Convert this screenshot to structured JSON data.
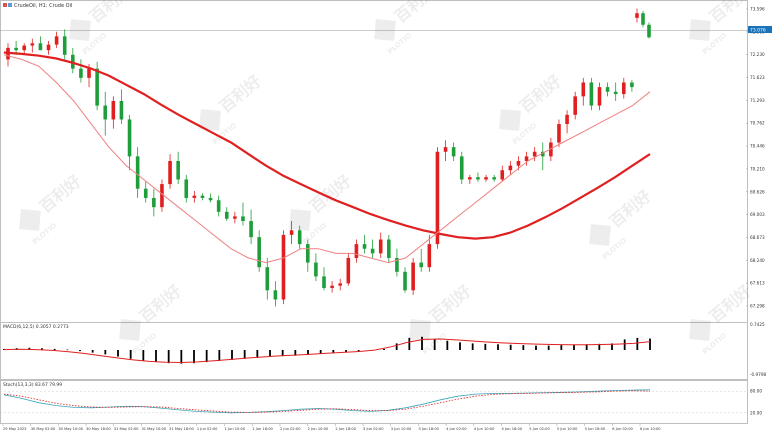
{
  "window": {
    "title": "CrudeOil, H1: Crude Oil",
    "price_badge": "73.076"
  },
  "watermark": {
    "text": "PLOTIO",
    "cn": "百利好"
  },
  "chart_data": {
    "type": "candlestick",
    "symbol": "CrudeOil",
    "timeframe": "H1",
    "price_axis": {
      "ticks": [
        "73.596",
        "72.960",
        "72.230",
        "71.623",
        "71.293",
        "70.762",
        "70.446",
        "70.210",
        "69.626",
        "69.003",
        "68.673",
        "68.240",
        "67.613",
        "67.298"
      ],
      "ylim": [
        67.0,
        73.8
      ]
    },
    "time_axis": {
      "ticks": [
        "29 May 2023",
        "30 May 02:00",
        "30 May 10:00",
        "30 May 18:00",
        "31 May 02:00",
        "31 May 10:00",
        "31 May 18:00",
        "1 Jun 02:00",
        "1 Jun 10:00",
        "1 Jun 18:00",
        "2 Jun 02:00",
        "2 Jun 10:00",
        "2 Jun 18:00",
        "3 Jun 02:00",
        "3 Jun 10:00",
        "3 Jun 18:00",
        "4 Jun 02:00",
        "4 Jun 10:00",
        "4 Jun 18:00",
        "5 Jun 02:00",
        "5 Jun 10:00",
        "5 Jun 18:00",
        "6 Jun 02:00",
        "6 Jun 10:00"
      ]
    },
    "candles": [
      {
        "o": 72.6,
        "h": 72.95,
        "l": 72.45,
        "c": 72.85
      },
      {
        "o": 72.85,
        "h": 73.0,
        "l": 72.7,
        "c": 72.8
      },
      {
        "o": 72.8,
        "h": 72.95,
        "l": 72.7,
        "c": 72.9
      },
      {
        "o": 72.9,
        "h": 73.05,
        "l": 72.75,
        "c": 72.95
      },
      {
        "o": 72.95,
        "h": 73.1,
        "l": 72.8,
        "c": 72.8
      },
      {
        "o": 72.8,
        "h": 73.0,
        "l": 72.7,
        "c": 72.92
      },
      {
        "o": 72.92,
        "h": 73.2,
        "l": 72.85,
        "c": 73.1
      },
      {
        "o": 73.1,
        "h": 73.25,
        "l": 72.6,
        "c": 72.7
      },
      {
        "o": 72.7,
        "h": 72.85,
        "l": 72.3,
        "c": 72.4
      },
      {
        "o": 72.4,
        "h": 72.6,
        "l": 72.1,
        "c": 72.2
      },
      {
        "o": 72.2,
        "h": 72.5,
        "l": 72.0,
        "c": 72.4
      },
      {
        "o": 72.4,
        "h": 72.55,
        "l": 71.5,
        "c": 71.6
      },
      {
        "o": 71.6,
        "h": 71.9,
        "l": 70.95,
        "c": 71.3
      },
      {
        "o": 71.3,
        "h": 71.8,
        "l": 71.1,
        "c": 71.7
      },
      {
        "o": 71.7,
        "h": 71.95,
        "l": 71.2,
        "c": 71.3
      },
      {
        "o": 71.3,
        "h": 71.4,
        "l": 70.2,
        "c": 70.5
      },
      {
        "o": 70.5,
        "h": 70.7,
        "l": 69.6,
        "c": 69.8
      },
      {
        "o": 69.8,
        "h": 69.95,
        "l": 69.5,
        "c": 69.6
      },
      {
        "o": 69.6,
        "h": 69.8,
        "l": 69.2,
        "c": 69.4
      },
      {
        "o": 69.4,
        "h": 70.0,
        "l": 69.3,
        "c": 69.9
      },
      {
        "o": 69.9,
        "h": 70.55,
        "l": 69.8,
        "c": 70.4
      },
      {
        "o": 70.4,
        "h": 70.6,
        "l": 69.9,
        "c": 70.0
      },
      {
        "o": 70.0,
        "h": 70.1,
        "l": 69.5,
        "c": 69.6
      },
      {
        "o": 69.6,
        "h": 69.75,
        "l": 69.5,
        "c": 69.65
      },
      {
        "o": 69.65,
        "h": 69.7,
        "l": 69.55,
        "c": 69.6
      },
      {
        "o": 69.6,
        "h": 69.7,
        "l": 69.5,
        "c": 69.55
      },
      {
        "o": 69.55,
        "h": 69.65,
        "l": 69.2,
        "c": 69.3
      },
      {
        "o": 69.3,
        "h": 69.4,
        "l": 69.1,
        "c": 69.15
      },
      {
        "o": 69.15,
        "h": 69.3,
        "l": 69.05,
        "c": 69.2
      },
      {
        "o": 69.2,
        "h": 69.5,
        "l": 69.0,
        "c": 69.1
      },
      {
        "o": 69.1,
        "h": 69.35,
        "l": 68.6,
        "c": 68.75
      },
      {
        "o": 68.75,
        "h": 68.9,
        "l": 68.0,
        "c": 68.1
      },
      {
        "o": 68.1,
        "h": 68.3,
        "l": 67.4,
        "c": 67.6
      },
      {
        "o": 67.6,
        "h": 67.8,
        "l": 67.25,
        "c": 67.4
      },
      {
        "o": 67.4,
        "h": 68.9,
        "l": 67.3,
        "c": 68.8
      },
      {
        "o": 68.8,
        "h": 69.1,
        "l": 68.6,
        "c": 68.9
      },
      {
        "o": 68.9,
        "h": 69.0,
        "l": 68.5,
        "c": 68.6
      },
      {
        "o": 68.6,
        "h": 68.7,
        "l": 68.0,
        "c": 68.2
      },
      {
        "o": 68.2,
        "h": 68.4,
        "l": 67.8,
        "c": 67.9
      },
      {
        "o": 67.9,
        "h": 68.1,
        "l": 67.6,
        "c": 67.65
      },
      {
        "o": 67.65,
        "h": 67.8,
        "l": 67.55,
        "c": 67.7
      },
      {
        "o": 67.7,
        "h": 67.85,
        "l": 67.6,
        "c": 67.75
      },
      {
        "o": 67.75,
        "h": 68.4,
        "l": 67.7,
        "c": 68.3
      },
      {
        "o": 68.3,
        "h": 68.7,
        "l": 68.2,
        "c": 68.6
      },
      {
        "o": 68.6,
        "h": 68.8,
        "l": 68.4,
        "c": 68.5
      },
      {
        "o": 68.5,
        "h": 68.7,
        "l": 68.3,
        "c": 68.4
      },
      {
        "o": 68.4,
        "h": 68.85,
        "l": 68.3,
        "c": 68.7
      },
      {
        "o": 68.7,
        "h": 68.8,
        "l": 68.2,
        "c": 68.3
      },
      {
        "o": 68.3,
        "h": 68.5,
        "l": 67.9,
        "c": 68.0
      },
      {
        "o": 68.0,
        "h": 68.1,
        "l": 67.55,
        "c": 67.6
      },
      {
        "o": 67.6,
        "h": 68.3,
        "l": 67.5,
        "c": 68.2
      },
      {
        "o": 68.2,
        "h": 68.5,
        "l": 68.0,
        "c": 68.1
      },
      {
        "o": 68.1,
        "h": 68.8,
        "l": 68.0,
        "c": 68.6
      },
      {
        "o": 68.6,
        "h": 70.7,
        "l": 68.5,
        "c": 70.6
      },
      {
        "o": 70.6,
        "h": 70.85,
        "l": 70.4,
        "c": 70.7
      },
      {
        "o": 70.7,
        "h": 70.8,
        "l": 70.4,
        "c": 70.5
      },
      {
        "o": 70.5,
        "h": 70.6,
        "l": 69.9,
        "c": 70.0
      },
      {
        "o": 70.0,
        "h": 70.1,
        "l": 69.9,
        "c": 70.05
      },
      {
        "o": 70.05,
        "h": 70.15,
        "l": 69.95,
        "c": 70.0
      },
      {
        "o": 70.0,
        "h": 70.1,
        "l": 69.95,
        "c": 70.05
      },
      {
        "o": 70.05,
        "h": 70.1,
        "l": 69.95,
        "c": 70.0
      },
      {
        "o": 70.0,
        "h": 70.3,
        "l": 69.95,
        "c": 70.2
      },
      {
        "o": 70.2,
        "h": 70.4,
        "l": 70.1,
        "c": 70.3
      },
      {
        "o": 70.3,
        "h": 70.5,
        "l": 70.2,
        "c": 70.4
      },
      {
        "o": 70.4,
        "h": 70.6,
        "l": 70.3,
        "c": 70.5
      },
      {
        "o": 70.5,
        "h": 70.7,
        "l": 70.4,
        "c": 70.6
      },
      {
        "o": 70.6,
        "h": 70.8,
        "l": 70.2,
        "c": 70.5
      },
      {
        "o": 70.5,
        "h": 70.9,
        "l": 70.4,
        "c": 70.8
      },
      {
        "o": 70.8,
        "h": 71.3,
        "l": 70.7,
        "c": 71.2
      },
      {
        "o": 71.2,
        "h": 71.5,
        "l": 71.0,
        "c": 71.4
      },
      {
        "o": 71.4,
        "h": 71.9,
        "l": 71.3,
        "c": 71.8
      },
      {
        "o": 71.8,
        "h": 72.2,
        "l": 71.6,
        "c": 72.1
      },
      {
        "o": 72.1,
        "h": 72.2,
        "l": 71.5,
        "c": 71.6
      },
      {
        "o": 71.6,
        "h": 72.1,
        "l": 71.5,
        "c": 72.0
      },
      {
        "o": 72.0,
        "h": 72.1,
        "l": 71.8,
        "c": 71.9
      },
      {
        "o": 71.9,
        "h": 72.1,
        "l": 71.7,
        "c": 71.85
      },
      {
        "o": 71.85,
        "h": 72.2,
        "l": 71.75,
        "c": 72.1
      },
      {
        "o": 72.1,
        "h": 72.15,
        "l": 71.9,
        "c": 72.0
      },
      {
        "o": 73.5,
        "h": 73.7,
        "l": 73.4,
        "c": 73.6
      },
      {
        "o": 73.6,
        "h": 73.65,
        "l": 73.3,
        "c": 73.35
      },
      {
        "o": 73.35,
        "h": 73.4,
        "l": 73.05,
        "c": 73.08
      }
    ],
    "moving_averages": [
      {
        "color": "#e02020",
        "width": 2.2,
        "points": [
          72.75,
          72.72,
          72.68,
          72.62,
          72.52,
          72.4,
          72.25,
          72.05,
          71.85,
          71.62,
          71.4,
          71.2,
          71.0,
          70.8,
          70.55,
          70.3,
          70.08,
          69.9,
          69.72,
          69.55,
          69.4,
          69.25,
          69.12,
          69.0,
          68.9,
          68.82,
          68.75,
          68.72,
          68.75,
          68.85,
          69.0,
          69.18,
          69.38,
          69.6,
          69.82,
          70.05,
          70.3,
          70.55
        ]
      },
      {
        "color": "#f08080",
        "width": 1,
        "points": [
          72.7,
          72.6,
          72.45,
          72.1,
          71.7,
          71.2,
          70.7,
          70.3,
          70.0,
          69.7,
          69.4,
          69.1,
          68.8,
          68.5,
          68.3,
          68.2,
          68.3,
          68.5,
          68.5,
          68.4,
          68.4,
          68.3,
          68.2,
          68.3,
          68.6,
          68.9,
          69.2,
          69.5,
          69.8,
          70.1,
          70.4,
          70.6,
          70.8,
          71.0,
          71.2,
          71.4,
          71.6,
          71.9
        ]
      }
    ],
    "macd": {
      "label": "MACD(6,12,5) 0.3057 0.2773",
      "axis_ticks": [
        "0.7425",
        "-0.9798"
      ],
      "bars": [
        0.05,
        0.08,
        0.1,
        0.08,
        0.05,
        0.02,
        -0.05,
        -0.12,
        -0.2,
        -0.3,
        -0.4,
        -0.48,
        -0.55,
        -0.6,
        -0.62,
        -0.6,
        -0.55,
        -0.5,
        -0.45,
        -0.4,
        -0.35,
        -0.3,
        -0.28,
        -0.26,
        -0.22,
        -0.18,
        -0.14,
        -0.1,
        -0.06,
        -0.02,
        0.05,
        0.3,
        0.55,
        0.6,
        0.5,
        0.42,
        0.35,
        0.3,
        0.28,
        0.26,
        0.24,
        0.22,
        0.2,
        0.2,
        0.22,
        0.24,
        0.26,
        0.28,
        0.3,
        0.48,
        0.55,
        0.52
      ],
      "signal": [
        0.02,
        0.03,
        0.02,
        -0.02,
        -0.08,
        -0.16,
        -0.26,
        -0.36,
        -0.45,
        -0.52,
        -0.56,
        -0.57,
        -0.54,
        -0.49,
        -0.43,
        -0.37,
        -0.32,
        -0.27,
        -0.23,
        -0.19,
        -0.15,
        -0.11,
        -0.07,
        0.0,
        0.15,
        0.35,
        0.48,
        0.5,
        0.46,
        0.41,
        0.36,
        0.32,
        0.29,
        0.27,
        0.25,
        0.24,
        0.24,
        0.25,
        0.27,
        0.3,
        0.38
      ]
    },
    "stoch": {
      "label": "Stoch(13,3,3) 83.67 79.99",
      "axis_ticks": [
        "80.00",
        "20.00"
      ],
      "main": [
        70,
        60,
        48,
        40,
        35,
        34,
        36,
        38,
        37,
        33,
        28,
        24,
        22,
        20,
        21,
        23,
        26,
        30,
        32,
        30,
        26,
        24,
        27,
        34,
        44,
        56,
        66,
        72,
        74,
        74,
        75,
        76,
        77,
        78,
        80,
        82,
        83,
        84
      ],
      "signal": [
        72,
        66,
        56,
        46,
        40,
        36,
        35,
        36,
        37,
        36,
        32,
        28,
        25,
        22,
        21,
        22,
        24,
        27,
        30,
        31,
        29,
        26,
        26,
        30,
        38,
        48,
        58,
        66,
        71,
        73,
        74,
        75,
        76,
        77,
        78,
        80,
        81,
        80
      ]
    }
  }
}
